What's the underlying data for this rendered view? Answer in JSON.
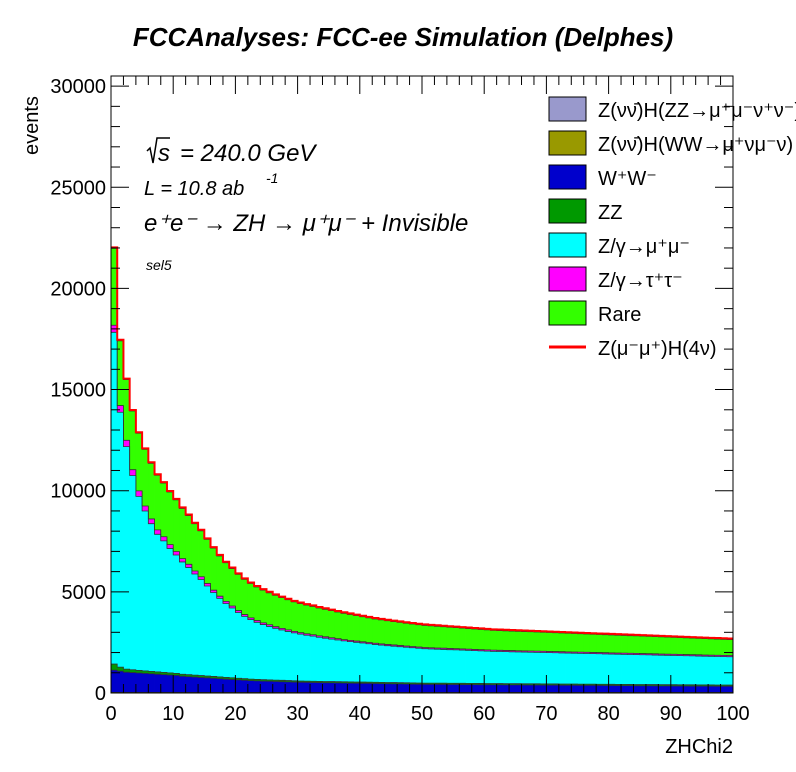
{
  "chart_data": {
    "type": "area",
    "title": "FCCAnalyses: FCC-ee Simulation (Delphes)",
    "xlabel": "ZHChi2",
    "ylabel": "events",
    "xlim": [
      0,
      100
    ],
    "ylim": [
      0,
      30500
    ],
    "x_ticks": [
      0,
      10,
      20,
      30,
      40,
      50,
      60,
      70,
      80,
      90,
      100
    ],
    "y_ticks": [
      0,
      5000,
      10000,
      15000,
      20000,
      25000,
      30000
    ],
    "stacked": true,
    "legend_position": "top-right",
    "annotations": {
      "sqrt_s": "s",
      "energy": "= 240.0 GeV",
      "lumi_prefix": "L = 10.8 ab",
      "lumi_exp": "-1",
      "process": "e⁺e⁻ → ZH → μ⁺μ⁻ + Invisible",
      "selection": "sel5"
    },
    "x": [
      0,
      1,
      2,
      3,
      4,
      5,
      6,
      7,
      8,
      9,
      10,
      11,
      12,
      13,
      14,
      15,
      16,
      17,
      18,
      19,
      20,
      21,
      22,
      23,
      24,
      25,
      26,
      27,
      28,
      29,
      30,
      31,
      32,
      33,
      34,
      35,
      36,
      37,
      38,
      39,
      40,
      41,
      42,
      43,
      44,
      45,
      46,
      47,
      48,
      49,
      50,
      51,
      52,
      53,
      54,
      55,
      56,
      57,
      58,
      59,
      60,
      61,
      62,
      63,
      64,
      65,
      65,
      67,
      68,
      69,
      70,
      71,
      72,
      73,
      74,
      75,
      76,
      77,
      78,
      79,
      80,
      81,
      82,
      83,
      84,
      85,
      86,
      87,
      88,
      89,
      90,
      91,
      92,
      93,
      94,
      95,
      96,
      97,
      98,
      99
    ],
    "series": [
      {
        "name": "Z(νν̄)H(ZZ→μ⁺μ⁻ν⁺ν⁻)",
        "color": "#9999cc",
        "legend": true,
        "values": [
          10,
          10,
          10,
          10,
          10,
          10,
          10,
          10,
          10,
          10,
          10,
          10,
          10,
          10,
          10,
          10,
          10,
          10,
          10,
          10,
          10,
          10,
          10,
          10,
          10,
          10,
          10,
          10,
          10,
          10,
          10,
          10,
          10,
          10,
          10,
          10,
          10,
          10,
          10,
          10,
          10,
          10,
          10,
          10,
          10,
          10,
          10,
          10,
          10,
          10,
          10,
          10,
          10,
          10,
          10,
          10,
          10,
          10,
          10,
          10,
          10,
          10,
          10,
          10,
          10,
          10,
          10,
          10,
          10,
          10,
          10,
          10,
          10,
          10,
          10,
          10,
          10,
          10,
          10,
          10,
          10,
          10,
          10,
          10,
          10,
          10,
          10,
          10,
          10,
          10,
          10,
          10,
          10,
          10,
          10,
          10,
          10,
          10,
          10,
          10
        ]
      },
      {
        "name": "Z(νν̄)H(WW→μ⁺νμ⁻ν)",
        "color": "#999900",
        "legend": true,
        "values": [
          20,
          20,
          20,
          20,
          20,
          20,
          20,
          20,
          20,
          20,
          20,
          20,
          20,
          20,
          20,
          20,
          20,
          20,
          20,
          20,
          20,
          20,
          20,
          20,
          20,
          20,
          20,
          20,
          20,
          20,
          20,
          20,
          20,
          20,
          20,
          20,
          20,
          20,
          20,
          20,
          20,
          20,
          20,
          20,
          20,
          20,
          20,
          20,
          20,
          20,
          20,
          20,
          20,
          20,
          20,
          20,
          20,
          20,
          20,
          20,
          20,
          20,
          20,
          20,
          20,
          20,
          20,
          20,
          20,
          20,
          20,
          20,
          20,
          20,
          20,
          20,
          20,
          20,
          20,
          20,
          20,
          20,
          20,
          20,
          20,
          20,
          20,
          20,
          20,
          20,
          20,
          20,
          20,
          20,
          20,
          20,
          20,
          20,
          20,
          20
        ]
      },
      {
        "name": "W⁺W⁻",
        "color": "#0000cc",
        "legend": true,
        "values": [
          1100,
          1050,
          1000,
          980,
          960,
          940,
          920,
          900,
          880,
          860,
          840,
          800,
          780,
          760,
          740,
          720,
          700,
          680,
          660,
          640,
          620,
          600,
          580,
          570,
          560,
          550,
          540,
          530,
          520,
          510,
          500,
          495,
          490,
          485,
          480,
          475,
          470,
          465,
          460,
          455,
          450,
          445,
          440,
          435,
          430,
          425,
          420,
          415,
          410,
          405,
          400,
          398,
          396,
          394,
          392,
          390,
          388,
          386,
          384,
          382,
          380,
          378,
          376,
          374,
          372,
          370,
          368,
          366,
          364,
          362,
          360,
          358,
          356,
          354,
          352,
          350,
          348,
          346,
          344,
          342,
          340,
          338,
          336,
          334,
          332,
          330,
          328,
          326,
          324,
          322,
          320,
          318,
          316,
          314,
          312,
          310,
          308,
          306,
          304,
          302
        ]
      },
      {
        "name": "ZZ",
        "color": "#009900",
        "legend": true,
        "values": [
          300,
          200,
          150,
          140,
          130,
          125,
          120,
          115,
          110,
          105,
          100,
          98,
          96,
          94,
          92,
          90,
          88,
          86,
          84,
          82,
          80,
          78,
          76,
          74,
          72,
          70,
          68,
          66,
          64,
          62,
          60,
          60,
          60,
          60,
          60,
          60,
          60,
          60,
          60,
          60,
          60,
          60,
          60,
          60,
          60,
          60,
          60,
          60,
          60,
          60,
          60,
          60,
          60,
          60,
          60,
          60,
          60,
          60,
          60,
          60,
          60,
          60,
          60,
          60,
          60,
          60,
          60,
          60,
          60,
          60,
          60,
          60,
          60,
          60,
          60,
          60,
          60,
          60,
          60,
          60,
          60,
          60,
          60,
          60,
          60,
          60,
          60,
          60,
          60,
          60,
          60,
          60,
          60,
          60,
          60,
          60,
          60,
          60,
          60,
          60
        ]
      },
      {
        "name": "Z/γ→μ⁺μ⁻",
        "color": "#00ffff",
        "legend": true,
        "values": [
          16400,
          12600,
          11000,
          9600,
          8600,
          7900,
          7300,
          6800,
          6500,
          6150,
          5850,
          5550,
          5300,
          5000,
          4750,
          4450,
          4150,
          3880,
          3650,
          3450,
          3250,
          3080,
          2940,
          2820,
          2720,
          2640,
          2560,
          2490,
          2430,
          2370,
          2320,
          2270,
          2230,
          2180,
          2140,
          2100,
          2060,
          2020,
          1990,
          1960,
          1930,
          1900,
          1870,
          1845,
          1820,
          1800,
          1780,
          1760,
          1740,
          1720,
          1700,
          1690,
          1680,
          1670,
          1660,
          1650,
          1640,
          1630,
          1620,
          1610,
          1600,
          1590,
          1585,
          1580,
          1575,
          1570,
          1565,
          1560,
          1555,
          1550,
          1545,
          1540,
          1535,
          1530,
          1525,
          1520,
          1515,
          1510,
          1505,
          1500,
          1495,
          1490,
          1485,
          1480,
          1475,
          1470,
          1465,
          1460,
          1455,
          1450,
          1445,
          1440,
          1435,
          1430,
          1425,
          1420,
          1415,
          1410,
          1405,
          1400
        ]
      },
      {
        "name": "Z/γ→τ⁺τ⁻",
        "color": "#ff00ff",
        "legend": true,
        "values": [
          350,
          330,
          310,
          290,
          270,
          250,
          235,
          220,
          205,
          190,
          175,
          165,
          155,
          145,
          135,
          125,
          115,
          110,
          105,
          100,
          95,
          90,
          88,
          86,
          84,
          82,
          80,
          78,
          76,
          74,
          72,
          70,
          69,
          68,
          67,
          66,
          65,
          64,
          63,
          62,
          61,
          60,
          60,
          60,
          60,
          60,
          60,
          60,
          60,
          60,
          60,
          60,
          60,
          60,
          60,
          60,
          60,
          60,
          60,
          60,
          60,
          60,
          60,
          60,
          60,
          60,
          60,
          60,
          60,
          60,
          60,
          60,
          60,
          60,
          60,
          60,
          60,
          60,
          60,
          60,
          60,
          60,
          60,
          60,
          60,
          60,
          60,
          60,
          60,
          60,
          60,
          60,
          60,
          60,
          60,
          60,
          60,
          60,
          60,
          60
        ]
      },
      {
        "name": "Rare",
        "color": "#33ff00",
        "legend": true,
        "values": [
          3800,
          3200,
          3000,
          2900,
          2850,
          2800,
          2750,
          2700,
          2650,
          2600,
          2550,
          2480,
          2410,
          2340,
          2270,
          2180,
          2080,
          1990,
          1910,
          1850,
          1790,
          1740,
          1700,
          1660,
          1620,
          1580,
          1550,
          1520,
          1490,
          1460,
          1440,
          1420,
          1400,
          1380,
          1360,
          1340,
          1320,
          1300,
          1280,
          1260,
          1240,
          1220,
          1200,
          1185,
          1170,
          1155,
          1140,
          1125,
          1110,
          1100,
          1090,
          1080,
          1070,
          1060,
          1050,
          1040,
          1030,
          1020,
          1010,
          1000,
          990,
          980,
          975,
          970,
          965,
          960,
          955,
          950,
          945,
          940,
          935,
          930,
          925,
          920,
          915,
          910,
          905,
          900,
          895,
          890,
          885,
          880,
          875,
          870,
          865,
          860,
          855,
          850,
          845,
          840,
          835,
          830,
          825,
          820,
          815,
          810,
          805,
          800,
          795,
          790
        ]
      },
      {
        "name": "Z(μ⁻μ⁺)H(4ν)",
        "color": "#ff0000",
        "legend": true,
        "values": [
          50,
          50,
          50,
          50,
          50,
          50,
          50,
          50,
          50,
          50,
          50,
          50,
          50,
          50,
          50,
          50,
          50,
          50,
          50,
          50,
          50,
          50,
          50,
          50,
          50,
          50,
          50,
          50,
          50,
          50,
          50,
          50,
          50,
          50,
          50,
          50,
          50,
          50,
          50,
          50,
          50,
          50,
          50,
          50,
          50,
          50,
          50,
          50,
          50,
          50,
          50,
          50,
          50,
          50,
          50,
          50,
          50,
          50,
          50,
          50,
          50,
          50,
          50,
          50,
          50,
          50,
          50,
          50,
          50,
          50,
          50,
          50,
          50,
          50,
          50,
          50,
          50,
          50,
          50,
          50,
          50,
          50,
          50,
          50,
          50,
          50,
          50,
          50,
          50,
          50,
          50,
          50,
          50,
          50,
          50,
          50,
          50,
          50,
          50,
          50
        ]
      }
    ]
  }
}
